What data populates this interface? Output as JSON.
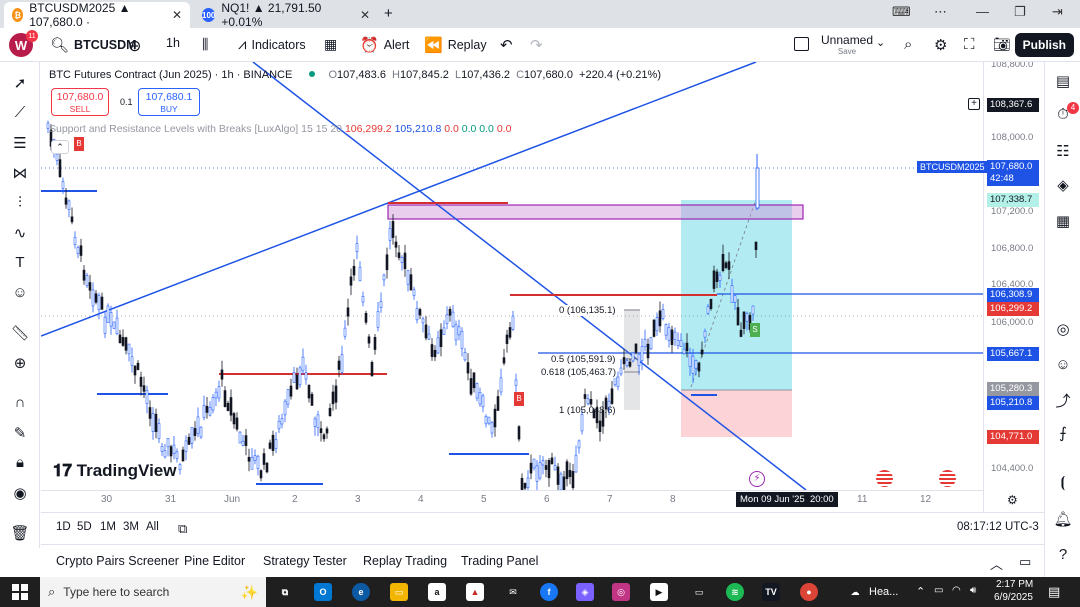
{
  "browser": {
    "tabs": [
      {
        "title": "BTCUSDM2025 ▲ 107,680.0 ·",
        "icon": "bitcoin-icon",
        "icon_color": "#f7931a",
        "active": true
      },
      {
        "title": "NQ1! ▲ 21,791.50 +0.01%",
        "icon": "tradingview-100-icon",
        "icon_color": "#2962ff",
        "active": false
      }
    ],
    "new_tab": "+",
    "close": "✕"
  },
  "toolbar": {
    "avatar_letter": "W",
    "avatar_badge": "11",
    "symbol": "BTCUSDM",
    "interval": "1h",
    "indicators": "Indicators",
    "alert": "Alert",
    "replay": "Replay",
    "layout_name": "Unnamed",
    "layout_sub": "Save",
    "publish": "Publish"
  },
  "legend": {
    "title": "BTC Futures Contract (Jun 2025) · 1h · BINANCE",
    "o_label": "O",
    "o": "107,483.6",
    "h_label": "H",
    "h": "107,845.2",
    "l_label": "L",
    "l": "107,436.2",
    "c_label": "C",
    "c": "107,680.0",
    "change": "+220.4 (+0.21%)",
    "sell_price": "107,680.0",
    "sell_label": "SELL",
    "spread": "0.1",
    "buy_price": "107,680.1",
    "buy_label": "BUY",
    "indicator": "Support and Resistance Levels with Breaks [LuxAlgo] 15 15 20",
    "ind_v1": "106,299.2",
    "ind_v2": "105,210.8",
    "ind_v3": "0.0",
    "ind_v4": "0.0",
    "ind_v5": "0.0",
    "ind_v6": "0.0"
  },
  "price_scale": {
    "ticks": [
      "108,800.0",
      "108,000.0",
      "107,200.0",
      "106,800.0",
      "106,400.0",
      "106,000.0",
      "104,400.0"
    ],
    "crosshair_price": "108,367.6",
    "symbol_label": "BTCUSDM2025",
    "last_price": "107,680.0",
    "countdown": "42:48",
    "labels": [
      {
        "text": "107,338.7",
        "color": "#b2f0e8",
        "fg": "#131722"
      },
      {
        "text": "106,308.9",
        "color": "#1e53e5",
        "fg": "#ffffff"
      },
      {
        "text": "106,299.2",
        "color": "#e53935",
        "fg": "#ffffff"
      },
      {
        "text": "105,667.1",
        "color": "#1e53e5",
        "fg": "#ffffff"
      },
      {
        "text": "105,280.3",
        "color": "#9598a1",
        "fg": "#ffffff"
      },
      {
        "text": "105,210.8",
        "color": "#1e53e5",
        "fg": "#ffffff"
      },
      {
        "text": "104,771.0",
        "color": "#e53935",
        "fg": "#ffffff"
      }
    ]
  },
  "fib": {
    "l0": "0 (106,135.1)",
    "l05": "0.5 (105,591.9)",
    "l0618": "0.618 (105,463.7)",
    "l1": "1 (105,048.6)"
  },
  "badges": {
    "b1": "B",
    "b2": "B",
    "s1": "S"
  },
  "time_axis": {
    "ticks": [
      "30",
      "31",
      "Jun",
      "2",
      "3",
      "4",
      "5",
      "6",
      "7",
      "8",
      "11",
      "12"
    ],
    "crosshair": "Mon 09 Jun '25  20:00"
  },
  "watermark": "TradingView",
  "ranges": [
    "1D",
    "5D",
    "1M",
    "3M",
    "All"
  ],
  "clock": "08:17:12 UTC-3",
  "panels": [
    "Crypto Pairs Screener",
    "Pine Editor",
    "Strategy Tester",
    "Replay Trading",
    "Trading Panel"
  ],
  "right_badge": "4",
  "taskbar": {
    "search": "Type here to search",
    "weather": "Hea...",
    "time": "2:17 PM",
    "date": "6/9/2025"
  },
  "colors": {
    "up": "#2962ff",
    "down": "#131722",
    "trendline": "#1e53e5",
    "resistance": "#d32f2f",
    "zone": "#ce93d8"
  }
}
